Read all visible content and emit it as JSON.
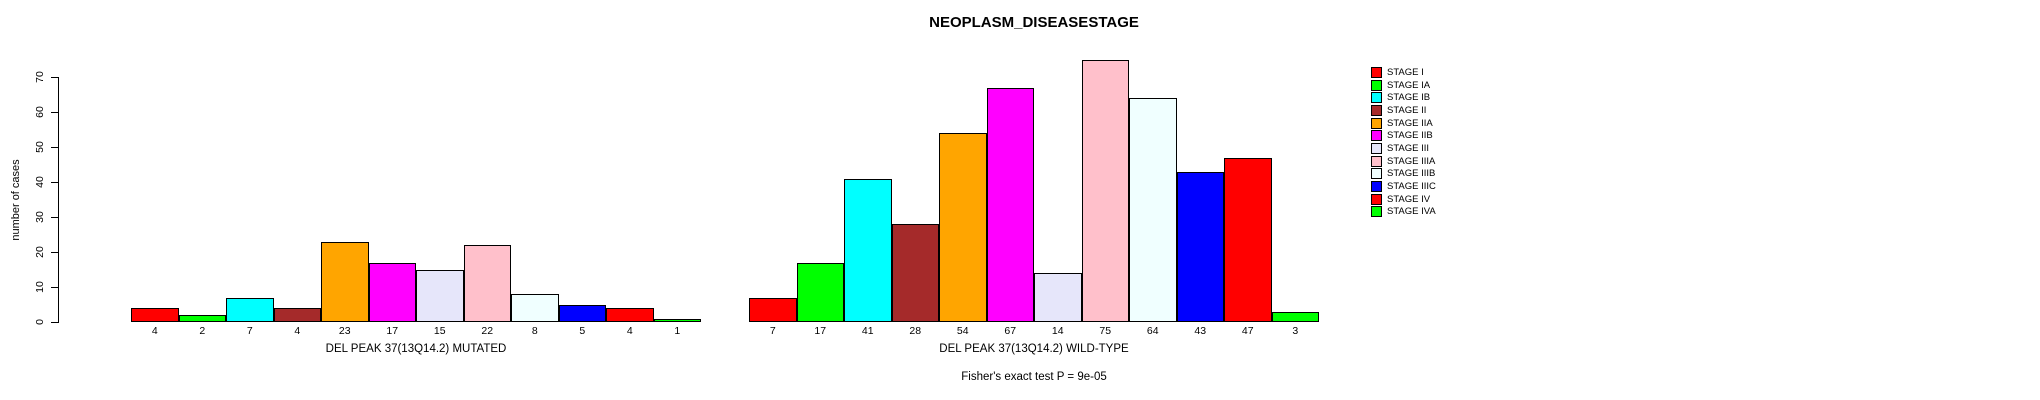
{
  "title": "NEOPLASM_DISEASESTAGE",
  "y_axis": {
    "label": "number of cases",
    "ticks": [
      0,
      10,
      20,
      30,
      40,
      50,
      60,
      70
    ]
  },
  "groups": [
    {
      "label": "DEL PEAK 37(13Q14.2) MUTATED",
      "values": [
        4,
        2,
        7,
        4,
        23,
        17,
        15,
        22,
        8,
        5,
        4,
        1
      ]
    },
    {
      "label": "DEL PEAK 37(13Q14.2) WILD-TYPE",
      "values": [
        7,
        17,
        41,
        28,
        54,
        67,
        14,
        75,
        64,
        43,
        47,
        3
      ]
    }
  ],
  "legend": {
    "items": [
      {
        "label": "STAGE I",
        "color": "#FF0000"
      },
      {
        "label": "STAGE IA",
        "color": "#00FF00"
      },
      {
        "label": "STAGE IB",
        "color": "#00FFFF"
      },
      {
        "label": "STAGE II",
        "color": "#A52A2A"
      },
      {
        "label": "STAGE IIA",
        "color": "#FFA500"
      },
      {
        "label": "STAGE IIB",
        "color": "#FF00FF"
      },
      {
        "label": "STAGE III",
        "color": "#E6E6FA"
      },
      {
        "label": "STAGE IIIA",
        "color": "#FFC0CB"
      },
      {
        "label": "STAGE IIIB",
        "color": "#F0FFFF"
      },
      {
        "label": "STAGE IIIC",
        "color": "#0000FF"
      },
      {
        "label": "STAGE IV",
        "color": "#FF0000"
      },
      {
        "label": "STAGE IVA",
        "color": "#00FF00"
      }
    ]
  },
  "footer": "Fisher's exact test P = 9e-05",
  "chart_data": {
    "type": "bar",
    "title": "NEOPLASM_DISEASESTAGE",
    "xlabel": "",
    "ylabel": "number of cases",
    "ylim": [
      0,
      70
    ],
    "grid": false,
    "legend_position": "right",
    "categories": [
      "STAGE I",
      "STAGE IA",
      "STAGE IB",
      "STAGE II",
      "STAGE IIA",
      "STAGE IIB",
      "STAGE III",
      "STAGE IIIA",
      "STAGE IIIB",
      "STAGE IIIC",
      "STAGE IV",
      "STAGE IVA"
    ],
    "series": [
      {
        "name": "DEL PEAK 37(13Q14.2) MUTATED",
        "values": [
          4,
          2,
          7,
          4,
          23,
          17,
          15,
          22,
          8,
          5,
          4,
          1
        ]
      },
      {
        "name": "DEL PEAK 37(13Q14.2) WILD-TYPE",
        "values": [
          7,
          17,
          41,
          28,
          54,
          67,
          14,
          75,
          64,
          43,
          47,
          3
        ]
      }
    ],
    "annotation": "Fisher's exact test P = 9e-05"
  }
}
